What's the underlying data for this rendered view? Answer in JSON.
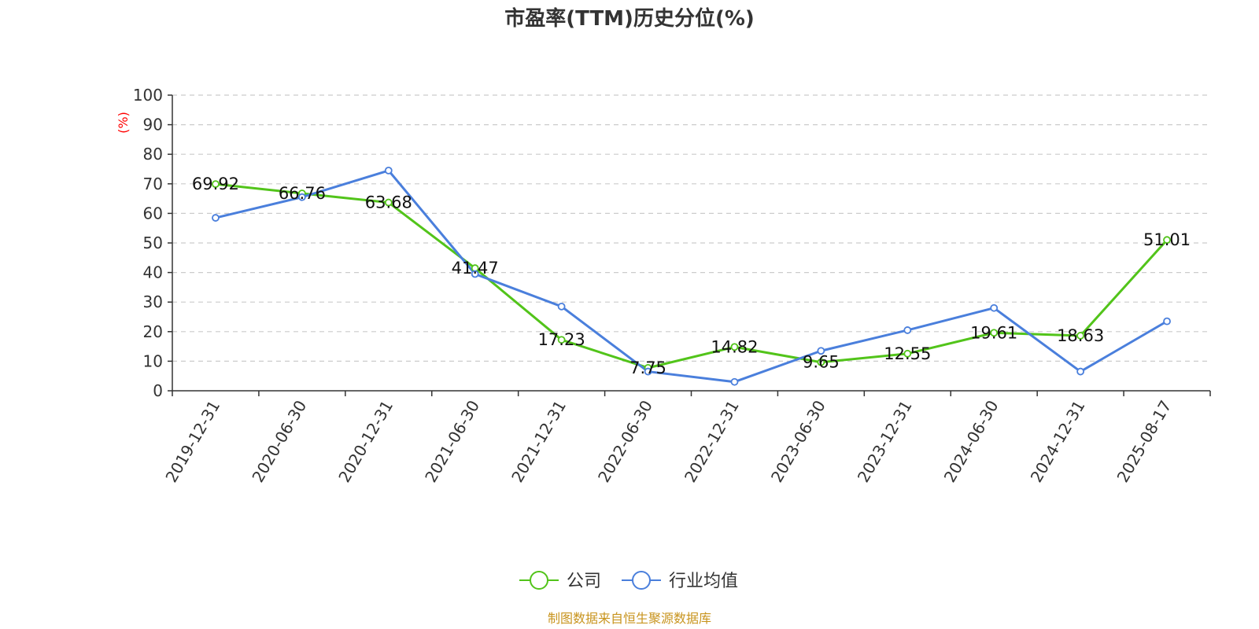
{
  "chart_data": {
    "type": "line",
    "title": "市盈率(TTM)历史分位(%)",
    "ylabel": "(%)",
    "ylim": [
      0,
      100
    ],
    "y_ticks": [
      0,
      10,
      20,
      30,
      40,
      50,
      60,
      70,
      80,
      90,
      100
    ],
    "grid": "horizontal dashed",
    "legend_position": "bottom-center",
    "categories": [
      "2019-12-31",
      "2020-06-30",
      "2020-12-31",
      "2021-06-30",
      "2021-12-31",
      "2022-06-30",
      "2022-12-31",
      "2023-06-30",
      "2023-12-31",
      "2024-06-30",
      "2024-12-31",
      "2025-08-17"
    ],
    "series": [
      {
        "name": "公司",
        "color": "#52c41a",
        "values": [
          69.92,
          66.76,
          63.68,
          41.47,
          17.23,
          7.75,
          14.82,
          9.65,
          12.55,
          19.61,
          18.63,
          51.01
        ],
        "labels": [
          "69.92",
          "66.76",
          "63.68",
          "41.47",
          "17.23",
          "7.75",
          "14.82",
          "9.65",
          "12.55",
          "19.61",
          "18.63",
          "51.01"
        ]
      },
      {
        "name": "行业均值",
        "color": "#4a7fdc",
        "values": [
          58.5,
          65.5,
          74.5,
          39.5,
          28.5,
          6.5,
          3.0,
          13.5,
          20.5,
          28.0,
          6.5,
          23.5
        ]
      }
    ]
  },
  "source": "制图数据来自恒生聚源数据库",
  "colors": {
    "axis": "#333333",
    "grid": "#cccccc",
    "ylabel": "#ff0000",
    "source": "#c8941e"
  }
}
